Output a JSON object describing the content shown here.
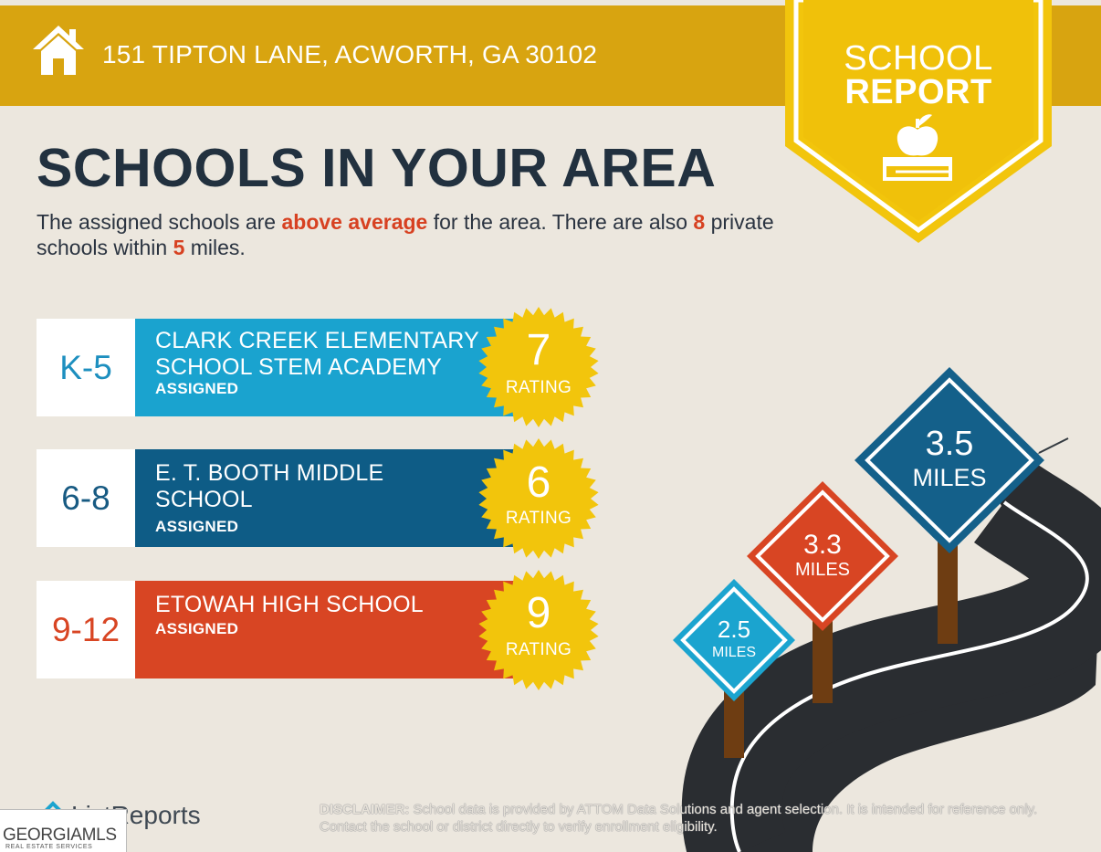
{
  "header": {
    "address": "151 TIPTON LANE, ACWORTH, GA 30102",
    "home_icon": "house-icon"
  },
  "badge": {
    "line1": "SCHOOL",
    "line2": "REPORT",
    "icon": "apple-on-book-icon"
  },
  "headline": "SCHOOLS IN YOUR AREA",
  "intro": {
    "part1": "The assigned schools are ",
    "highlight": "above average",
    "part2": " for the area. There are also ",
    "private_count": "8",
    "part3": " private schools within ",
    "distance": "5",
    "part4": " miles."
  },
  "schools": [
    {
      "grades": "K-5",
      "name": "CLARK CREEK ELEMENTARY SCHOOL STEM ACADEMY",
      "status": "ASSIGNED",
      "rating": "7",
      "rating_label": "RATING",
      "band_color": "#1aa3cf",
      "grade_color": "#1d8fbf"
    },
    {
      "grades": "6-8",
      "name": "E. T. BOOTH MIDDLE SCHOOL",
      "status": "ASSIGNED",
      "rating": "6",
      "rating_label": "RATING",
      "band_color": "#0e5c86",
      "grade_color": "#175a82"
    },
    {
      "grades": "9-12",
      "name": "ETOWAH HIGH SCHOOL",
      "status": "ASSIGNED",
      "rating": "9",
      "rating_label": "RATING",
      "band_color": "#d84523",
      "grade_color": "#d84523"
    }
  ],
  "signs": [
    {
      "value": "2.5",
      "unit": "MILES",
      "color": "#1ba4cf"
    },
    {
      "value": "3.3",
      "unit": "MILES",
      "color": "#d84523"
    },
    {
      "value": "3.5",
      "unit": "MILES",
      "color": "#14608a"
    }
  ],
  "footer": {
    "brand": "ListReports",
    "disclaimer_label": "DISCLAIMER:",
    "disclaimer_text": " School data is provided by ATTOM Data Solutions and agent selection. It is intended for reference only. Contact the school or district directly to verify enrollment eligibility.",
    "watermark": "GEORGIAMLS",
    "watermark_sub": "REAL ESTATE SERVICES"
  },
  "colors": {
    "background": "#ece7de",
    "header": "#d8a410",
    "badge": "#f2c50c",
    "seal": "#f2c50c",
    "headline": "#22313f",
    "highlight": "#d74121"
  }
}
